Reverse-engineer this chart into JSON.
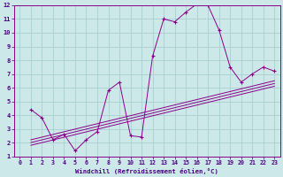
{
  "xlabel": "Windchill (Refroidissement éolien,°C)",
  "background_color": "#cce8e8",
  "grid_color": "#aacfcf",
  "line_color": "#8b008b",
  "xlim": [
    -0.5,
    23.5
  ],
  "ylim": [
    1,
    12
  ],
  "xticks": [
    0,
    1,
    2,
    3,
    4,
    5,
    6,
    7,
    8,
    9,
    10,
    11,
    12,
    13,
    14,
    15,
    16,
    17,
    18,
    19,
    20,
    21,
    22,
    23
  ],
  "yticks": [
    1,
    2,
    3,
    4,
    5,
    6,
    7,
    8,
    9,
    10,
    11,
    12
  ],
  "series1_x": [
    1,
    2,
    3,
    4,
    5,
    6,
    7,
    8,
    9,
    10,
    11,
    12,
    13,
    14,
    15,
    16,
    17,
    18,
    19,
    20,
    21,
    22,
    23
  ],
  "series1_y": [
    4.4,
    3.8,
    2.2,
    2.6,
    1.4,
    2.2,
    2.8,
    5.8,
    6.4,
    2.5,
    2.4,
    8.3,
    11.0,
    10.8,
    11.5,
    12.1,
    12.0,
    10.2,
    7.5,
    6.4,
    7.0,
    7.5,
    7.2
  ],
  "series2_x": [
    1,
    23
  ],
  "series2_y": [
    2.2,
    6.5
  ],
  "series3_x": [
    1,
    23
  ],
  "series3_y": [
    2.0,
    6.3
  ],
  "series4_x": [
    1,
    23
  ],
  "series4_y": [
    1.8,
    6.1
  ]
}
